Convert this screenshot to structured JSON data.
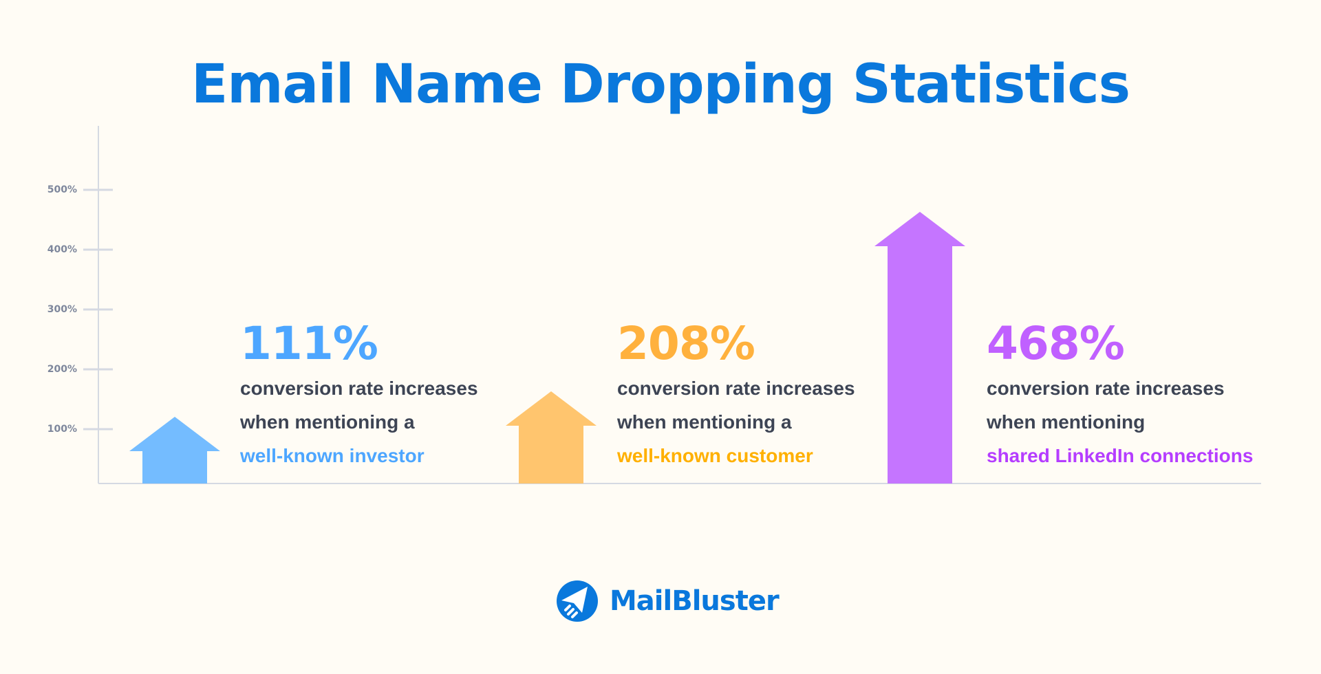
{
  "title": "Email Name Dropping Statistics",
  "chart_data": {
    "type": "bar",
    "ytick_labels": [
      "500%",
      "400%",
      "300%",
      "200%",
      "100%"
    ],
    "ylim": [
      0,
      500
    ],
    "grid": false,
    "series": [
      {
        "value": 111,
        "label": "111%",
        "line1": "conversion rate increases",
        "line2": "when mentioning a",
        "highlight": "well-known investor",
        "arrow_color": "#74bcff",
        "text_color": "#4da6ff"
      },
      {
        "value": 208,
        "label": "208%",
        "line1": "conversion rate increases",
        "line2": "when mentioning a",
        "highlight": "well-known customer",
        "arrow_color": "#ffc56e",
        "text_color": "#ffb13d",
        "highlight_color": "#ffb000"
      },
      {
        "value": 468,
        "label": "468%",
        "line1": "conversion rate increases",
        "line2": "when mentioning",
        "highlight": "shared LinkedIn connections",
        "arrow_color": "#c575ff",
        "text_color": "#c060ff",
        "highlight_color": "#b53dff"
      }
    ]
  },
  "brand": {
    "name": "MailBluster",
    "color": "#0a78dc"
  }
}
